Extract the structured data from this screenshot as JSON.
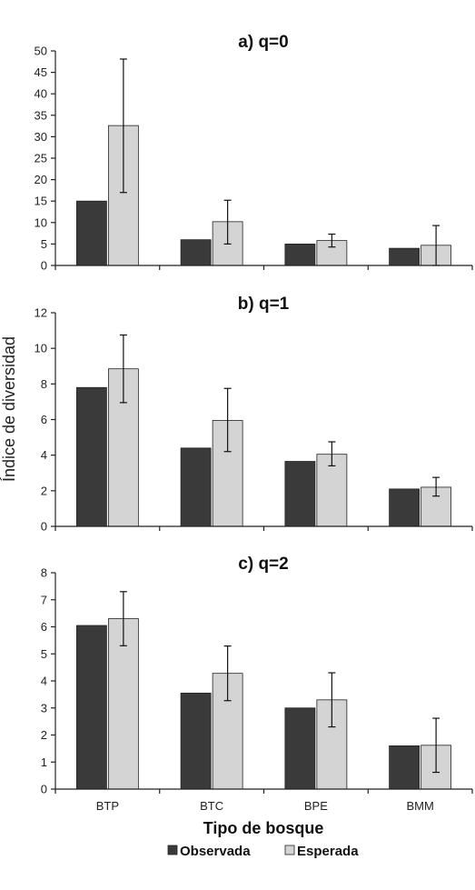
{
  "chart_data": {
    "type": "bar",
    "ylabel": "Índice de diversidad",
    "xlabel": "Tipo de bosque",
    "categories": [
      "BTP",
      "BTC",
      "BPE",
      "BMM"
    ],
    "legend": {
      "placement": "bottom",
      "entries": [
        {
          "name": "Observada",
          "color": "#3a3a3a"
        },
        {
          "name": "Esperada",
          "color": "#d4d4d4"
        }
      ]
    },
    "panels": [
      {
        "title": "a) q=0",
        "ylim": [
          0,
          50
        ],
        "yticks": [
          0,
          5,
          10,
          15,
          20,
          25,
          30,
          35,
          40,
          45,
          50
        ],
        "series": [
          {
            "name": "Observada",
            "values": [
              15,
              6,
              5,
              4
            ]
          },
          {
            "name": "Esperada",
            "values": [
              32.6,
              10.2,
              5.8,
              4.7
            ],
            "error_low": [
              17,
              5,
              4.3,
              0
            ],
            "error_high": [
              48.1,
              15.2,
              7.3,
              9.3
            ]
          }
        ]
      },
      {
        "title": "b) q=1",
        "ylim": [
          0,
          12
        ],
        "yticks": [
          0,
          2,
          4,
          6,
          8,
          10,
          12
        ],
        "series": [
          {
            "name": "Observada",
            "values": [
              7.8,
              4.4,
              3.65,
              2.1
            ]
          },
          {
            "name": "Esperada",
            "values": [
              8.85,
              5.95,
              4.05,
              2.2
            ],
            "error_low": [
              6.95,
              4.2,
              3.4,
              1.7
            ],
            "error_high": [
              10.75,
              7.75,
              4.75,
              2.75
            ]
          }
        ]
      },
      {
        "title": "c) q=2",
        "ylim": [
          0,
          8
        ],
        "yticks": [
          0,
          1,
          2,
          3,
          4,
          5,
          6,
          7,
          8
        ],
        "series": [
          {
            "name": "Observada",
            "values": [
              6.05,
              3.55,
              3.0,
              1.6
            ]
          },
          {
            "name": "Esperada",
            "values": [
              6.3,
              4.28,
              3.3,
              1.62
            ],
            "error_low": [
              5.3,
              3.27,
              2.3,
              0.62
            ],
            "error_high": [
              7.3,
              5.29,
              4.3,
              2.62
            ]
          }
        ]
      }
    ]
  }
}
